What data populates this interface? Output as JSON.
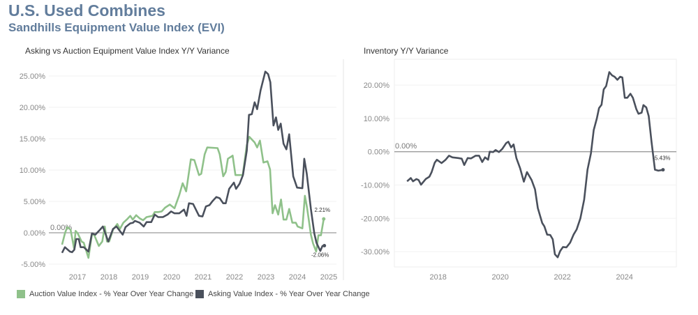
{
  "header": {
    "title": "U.S. Used Combines",
    "subtitle": "Sandhills Equipment Value Index (EVI)"
  },
  "colors": {
    "title": "#627d9c",
    "auction": "#8fc18a",
    "asking": "#4a505c",
    "inventory": "#4a505c",
    "zero_line": "#9a9a9a"
  },
  "chart_data": [
    {
      "type": "line",
      "title": "Asking vs Auction Equipment Value Index Y/Y Variance",
      "xlabel": "",
      "ylabel": "",
      "x_ticks": [
        "2017",
        "2018",
        "2019",
        "2020",
        "2021",
        "2022",
        "2023",
        "2024",
        "2025"
      ],
      "y_ticks": [
        "25.00%",
        "20.00%",
        "15.00%",
        "10.00%",
        "5.00%",
        "0.00%",
        "-5.00%"
      ],
      "ylim": [
        -5.5,
        26.5
      ],
      "xlim": [
        2016.1,
        2025.3
      ],
      "grid": true,
      "legend_position": "bottom",
      "reference_line": {
        "value": 0,
        "label": "0.00%"
      },
      "series": [
        {
          "name": "Auction Value Index - % Year Over Year Change",
          "end_label": "2.21%",
          "x": [
            2016.51,
            2016.6,
            2016.67,
            2016.78,
            2016.89,
            2016.94,
            2017.01,
            2017.13,
            2017.2,
            2017.35,
            2017.46,
            2017.53,
            2017.68,
            2017.79,
            2017.87,
            2017.94,
            2018.01,
            2018.13,
            2018.27,
            2018.35,
            2018.46,
            2018.57,
            2018.68,
            2018.76,
            2018.87,
            2018.98,
            2019.09,
            2019.2,
            2019.39,
            2019.46,
            2019.57,
            2019.68,
            2019.79,
            2019.94,
            2020.09,
            2020.24,
            2020.35,
            2020.46,
            2020.61,
            2020.72,
            2020.87,
            2020.94,
            2021.05,
            2021.13,
            2021.46,
            2021.53,
            2021.64,
            2021.72,
            2021.79,
            2021.94,
            2022.03,
            2022.15,
            2022.26,
            2022.39,
            2022.47,
            2022.64,
            2022.72,
            2022.81,
            2022.92,
            2023.05,
            2023.13,
            2023.21,
            2023.29,
            2023.39,
            2023.48,
            2023.56,
            2023.65,
            2023.74,
            2023.84,
            2023.95,
            2024.01,
            2024.16,
            2024.24,
            2024.31,
            2024.43,
            2024.5,
            2024.6,
            2024.67,
            2024.75,
            2024.84
          ],
          "values": [
            -1.9,
            -0.1,
            0.9,
            0.5,
            -2.5,
            0.3,
            -0.1,
            -1.4,
            -1.6,
            -4.0,
            -0.3,
            -0.3,
            -2.1,
            -1.4,
            1.0,
            -1.4,
            -1.4,
            0.5,
            1.4,
            0.6,
            1.6,
            2.1,
            2.7,
            2.1,
            2.8,
            2.3,
            2.0,
            2.5,
            2.7,
            3.3,
            3.3,
            3.4,
            4.0,
            4.5,
            3.9,
            6.0,
            7.9,
            6.6,
            11.7,
            11.6,
            9.2,
            9.4,
            12.5,
            13.6,
            13.5,
            12.5,
            9.0,
            9.7,
            11.8,
            12.3,
            9.2,
            9.2,
            9.2,
            14.0,
            15.3,
            14.4,
            13.6,
            14.7,
            11.2,
            11.4,
            10.1,
            3.1,
            4.4,
            2.9,
            5.3,
            2.1,
            2.1,
            3.8,
            1.6,
            1.6,
            1.0,
            0.7,
            5.9,
            4.0,
            -0.3,
            -1.7,
            -3.0,
            -0.4,
            -0.4,
            2.21
          ]
        },
        {
          "name": "Asking Value Index - % Year Over Year Change",
          "end_label": "-2.06%",
          "x": [
            2016.51,
            2016.6,
            2016.76,
            2016.83,
            2016.9,
            2016.96,
            2017.04,
            2017.1,
            2017.2,
            2017.35,
            2017.46,
            2017.57,
            2017.72,
            2017.81,
            2017.98,
            2018.13,
            2018.24,
            2018.44,
            2018.53,
            2018.68,
            2018.77,
            2018.83,
            2018.98,
            2019.11,
            2019.2,
            2019.35,
            2019.46,
            2019.57,
            2019.72,
            2019.87,
            2019.98,
            2020.09,
            2020.24,
            2020.39,
            2020.47,
            2020.55,
            2020.68,
            2020.87,
            2020.98,
            2021.09,
            2021.2,
            2021.31,
            2021.42,
            2021.53,
            2021.64,
            2021.72,
            2021.83,
            2021.98,
            2022.05,
            2022.16,
            2022.27,
            2022.39,
            2022.46,
            2022.55,
            2022.64,
            2022.72,
            2022.83,
            2022.98,
            2023.07,
            2023.14,
            2023.24,
            2023.32,
            2023.39,
            2023.47,
            2023.56,
            2023.65,
            2023.74,
            2023.87,
            2023.99,
            2024.16,
            2024.22,
            2024.3,
            2024.43,
            2024.54,
            2024.61,
            2024.73,
            2024.8,
            2024.86
          ],
          "values": [
            -3.2,
            -2.3,
            -3.0,
            -3.1,
            -2.7,
            -1.0,
            -1.0,
            -2.3,
            -2.3,
            -3.0,
            -0.1,
            -0.3,
            0.5,
            1.0,
            -1.4,
            0.6,
            1.0,
            -0.3,
            0.9,
            1.5,
            1.6,
            1.9,
            1.6,
            1.0,
            1.7,
            1.7,
            2.9,
            2.5,
            2.5,
            2.9,
            3.4,
            3.1,
            3.1,
            3.7,
            2.7,
            4.7,
            4.6,
            2.7,
            2.6,
            4.2,
            4.4,
            5.1,
            5.7,
            5.5,
            4.7,
            4.7,
            7.0,
            8.0,
            7.0,
            7.8,
            9.2,
            13.1,
            18.8,
            18.9,
            20.8,
            19.7,
            22.7,
            25.7,
            25.3,
            24.0,
            17.1,
            18.4,
            16.4,
            17.4,
            14.2,
            13.3,
            15.7,
            9.0,
            7.2,
            7.1,
            11.8,
            9.4,
            3.8,
            -0.1,
            -1.6,
            -2.9,
            -2.1,
            -2.06
          ]
        }
      ]
    },
    {
      "type": "line",
      "title": "Inventory Y/Y Variance",
      "xlabel": "",
      "ylabel": "",
      "x_ticks": [
        "2018",
        "2020",
        "2022",
        "2024"
      ],
      "y_ticks": [
        "20.00%",
        "10.00%",
        "0.00%",
        "-10.00%",
        "-20.00%",
        "-30.00%"
      ],
      "ylim": [
        -34,
        26
      ],
      "xlim": [
        2016.6,
        2025.6
      ],
      "grid": true,
      "reference_line": {
        "value": 0,
        "label": "0.00%"
      },
      "series": [
        {
          "end_label": "-5.43%",
          "x": [
            2017.0,
            2017.12,
            2017.19,
            2017.3,
            2017.37,
            2017.45,
            2017.6,
            2017.72,
            2017.79,
            2017.89,
            2017.96,
            2018.11,
            2018.24,
            2018.35,
            2018.46,
            2018.65,
            2018.76,
            2018.84,
            2018.95,
            2019.06,
            2019.21,
            2019.32,
            2019.42,
            2019.51,
            2019.61,
            2019.66,
            2019.77,
            2019.85,
            2019.96,
            2020.07,
            2020.19,
            2020.26,
            2020.35,
            2020.43,
            2020.52,
            2020.64,
            2020.76,
            2020.86,
            2021.01,
            2021.12,
            2021.21,
            2021.35,
            2021.42,
            2021.51,
            2021.61,
            2021.69,
            2021.76,
            2021.85,
            2021.93,
            2022.02,
            2022.13,
            2022.25,
            2022.36,
            2022.46,
            2022.58,
            2022.7,
            2022.81,
            2022.92,
            2023.01,
            2023.11,
            2023.18,
            2023.26,
            2023.33,
            2023.41,
            2023.51,
            2023.6,
            2023.68,
            2023.77,
            2023.86,
            2023.93,
            2024.01,
            2024.09,
            2024.19,
            2024.27,
            2024.38,
            2024.45,
            2024.55,
            2024.61,
            2024.7,
            2024.78,
            2024.87,
            2024.98,
            2025.09,
            2025.24
          ],
          "values": [
            -8.9,
            -7.9,
            -8.9,
            -8.2,
            -8.5,
            -9.9,
            -8.2,
            -7.5,
            -6.1,
            -3.3,
            -2.4,
            -3.4,
            -2.4,
            -1.2,
            -1.7,
            -1.9,
            -2.1,
            -4.0,
            -1.9,
            -2.0,
            -1.2,
            -1.2,
            -3.1,
            -1.7,
            -2.4,
            0.0,
            -0.1,
            0.5,
            -0.1,
            0.9,
            2.6,
            3.0,
            1.3,
            2.2,
            -1.9,
            -5.0,
            -9.0,
            -6.1,
            -8.5,
            -11.3,
            -16.9,
            -21.4,
            -22.4,
            -24.9,
            -25.0,
            -26.3,
            -30.8,
            -31.7,
            -29.8,
            -28.6,
            -28.7,
            -27.3,
            -24.9,
            -23.3,
            -20.0,
            -14.4,
            -5.4,
            -0.5,
            6.5,
            10.0,
            13.1,
            14.1,
            18.7,
            19.7,
            23.9,
            22.9,
            22.5,
            21.6,
            22.5,
            22.3,
            16.2,
            16.2,
            17.4,
            16.2,
            12.8,
            11.4,
            11.7,
            14.0,
            13.3,
            10.7,
            3.0,
            -5.4,
            -5.7,
            -5.43
          ]
        }
      ]
    }
  ]
}
